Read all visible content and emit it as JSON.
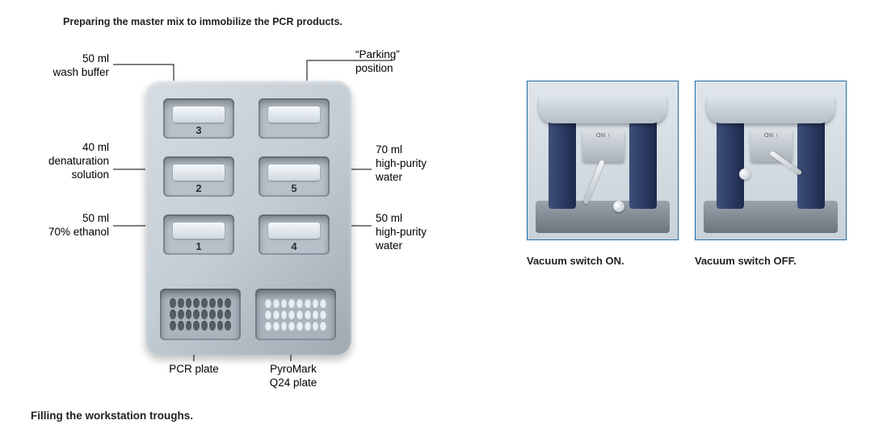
{
  "title_top": "Preparing the master mix to immobilize the PCR products.",
  "title_bottom": "Filling the workstation troughs.",
  "diagram": {
    "type": "infographic",
    "device_name": "PyroMark workstation",
    "body_color": "#c4cdd4",
    "body_highlight": "#d6dde2",
    "body_shadow": "#9ea9b2",
    "leader_color": "#000000",
    "label_fontsize": 13.5,
    "label_color": "#000000",
    "trough_number_fontsize": 13,
    "troughs": [
      {
        "id": "3",
        "row": 0,
        "col": 0,
        "label_line1": "50 ml",
        "label_line2": "wash buffer"
      },
      {
        "id": "2",
        "row": 1,
        "col": 0,
        "label_line1": "40 ml",
        "label_line2": "denaturation",
        "label_line3": "solution"
      },
      {
        "id": "1",
        "row": 2,
        "col": 0,
        "label_line1": "50 ml",
        "label_line2": "70% ethanol"
      },
      {
        "id": "P",
        "row": 0,
        "col": 1,
        "label_line1": "“Parking”",
        "label_line2": "position"
      },
      {
        "id": "5",
        "row": 1,
        "col": 1,
        "label_line1": "70 ml",
        "label_line2": "high-purity",
        "label_line3": "water"
      },
      {
        "id": "4",
        "row": 2,
        "col": 1,
        "label_line1": "50 ml",
        "label_line2": "high-purity",
        "label_line3": "water"
      }
    ],
    "plates": {
      "left": {
        "label_line1": "PCR plate"
      },
      "right": {
        "label_line1": "PyroMark",
        "label_line2": "Q24 plate"
      }
    },
    "well_grid": {
      "cols": 8,
      "rows": 3,
      "count": 24
    }
  },
  "photos": {
    "border_color": "#1f6aa5",
    "pillar_color_a": "#3d4f7a",
    "pillar_color_b": "#1d2a4c",
    "caption_fontsize": 13,
    "on": {
      "caption": "Vacuum switch ON.",
      "lever_angle_deg": 22,
      "switch_label": "ON ↑"
    },
    "off": {
      "caption": "Vacuum switch OFF.",
      "lever_angle_deg": -55,
      "switch_label": "ON ↑"
    }
  }
}
